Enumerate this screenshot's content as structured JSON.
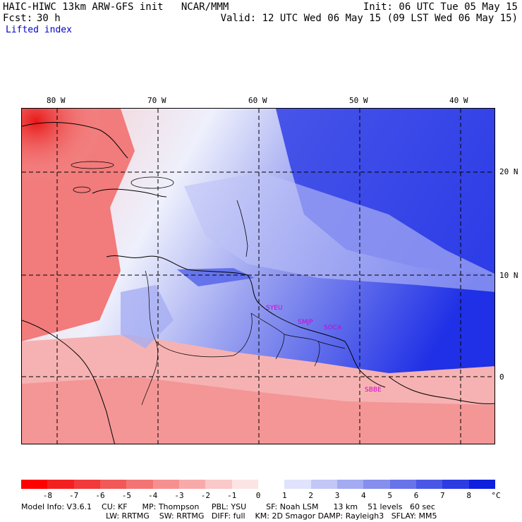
{
  "header": {
    "title": "HAIC-HIWC 13km ARW-GFS init   NCAR/MMM",
    "init": "Init: 06 UTC Tue 05 May 15",
    "fcst_label": "Fcst:",
    "fcst_value": "30 h",
    "valid": "Valid: 12 UTC Wed 06 May 15 (09 LST Wed 06 May 15)",
    "field": "Lifted index"
  },
  "map": {
    "lon_labels": [
      "80 W",
      "70 W",
      "60 W",
      "50 W",
      "40 W"
    ],
    "lat_labels": [
      "20 N",
      "10 N",
      "0"
    ],
    "stations": [
      "SYEU",
      "SMJP",
      "SOCA",
      "SBBE"
    ],
    "colors": {
      "strong_negative": "#e01010",
      "negative": "#f47070",
      "weak_negative": "#f9c0c0",
      "neutral": "#ffffff",
      "weak_positive": "#cfd4f8",
      "positive": "#7d86ee",
      "strong_positive": "#1d2ee8"
    }
  },
  "legend": {
    "ticks": [
      "-8",
      "-7",
      "-6",
      "-5",
      "-4",
      "-3",
      "-2",
      "-1",
      "0",
      "1",
      "2",
      "3",
      "4",
      "5",
      "6",
      "7",
      "8"
    ],
    "unit": "°C",
    "colors": [
      "#ff0000",
      "#f42020",
      "#f23a3a",
      "#f25858",
      "#f47474",
      "#f69090",
      "#f8aaaa",
      "#fac8c8",
      "#fde4e4",
      "#ffffff",
      "#e0e3fb",
      "#c2c7f6",
      "#a4abf2",
      "#868fee",
      "#6873ea",
      "#4a57e6",
      "#2c3be2",
      "#0e1fde"
    ]
  },
  "footer": {
    "line1": "Model Info: V3.6.1    CU: KF      MP: Thompson     PBL: YSU        SF: Noah LSM      13 km    51 levels   60 sec",
    "line2": "LW: RRTMG    SW: RRTMG   DIFF: full    KM: 2D Smagor DAMP: Rayleigh3   SFLAY: MM5"
  }
}
